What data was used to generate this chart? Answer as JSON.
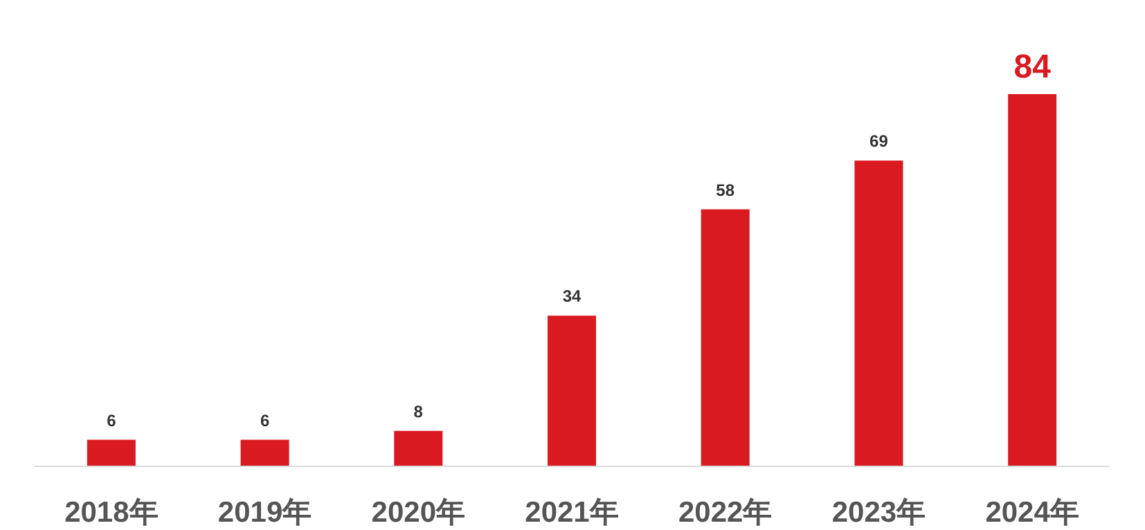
{
  "chart_data": {
    "type": "bar",
    "categories": [
      "2018年",
      "2019年",
      "2020年",
      "2021年",
      "2022年",
      "2023年",
      "2024年"
    ],
    "values": [
      6,
      6,
      8,
      34,
      58,
      69,
      84
    ],
    "color": "#d91a21",
    "data_labels": true
  }
}
